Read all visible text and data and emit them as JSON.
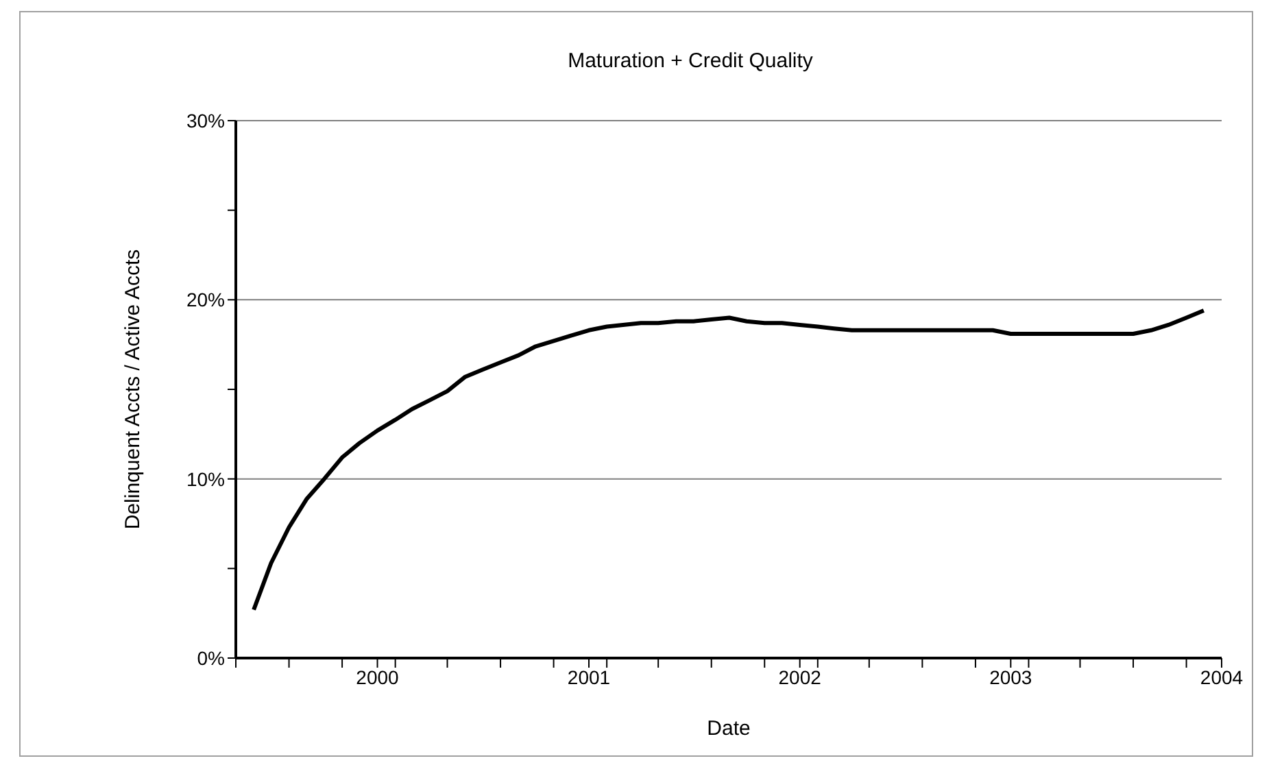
{
  "chart_data": {
    "type": "line",
    "title": "Maturation + Credit Quality",
    "xlabel": "Date",
    "ylabel": "Delinquent Accts / Active Accts",
    "x": [
      "1999-06",
      "1999-07",
      "1999-08",
      "1999-09",
      "1999-10",
      "1999-11",
      "1999-12",
      "2000-01",
      "2000-02",
      "2000-03",
      "2000-04",
      "2000-05",
      "2000-06",
      "2000-07",
      "2000-08",
      "2000-09",
      "2000-10",
      "2000-11",
      "2000-12",
      "2001-01",
      "2001-02",
      "2001-03",
      "2001-04",
      "2001-05",
      "2001-06",
      "2001-07",
      "2001-08",
      "2001-09",
      "2001-10",
      "2001-11",
      "2001-12",
      "2002-01",
      "2002-02",
      "2002-03",
      "2002-04",
      "2002-05",
      "2002-06",
      "2002-07",
      "2002-08",
      "2002-09",
      "2002-10",
      "2002-11",
      "2002-12",
      "2003-01",
      "2003-02",
      "2003-03",
      "2003-04",
      "2003-05",
      "2003-06",
      "2003-07",
      "2003-08",
      "2003-09",
      "2003-10",
      "2003-11",
      "2003-12"
    ],
    "series": [
      {
        "color": "#000000",
        "values": [
          2.7,
          5.3,
          7.3,
          8.9,
          10.0,
          11.2,
          12.0,
          12.7,
          13.3,
          13.9,
          14.4,
          14.9,
          15.7,
          16.1,
          16.5,
          16.9,
          17.4,
          17.7,
          18.0,
          18.3,
          18.5,
          18.6,
          18.7,
          18.7,
          18.8,
          18.8,
          18.9,
          19.0,
          18.8,
          18.7,
          18.7,
          18.6,
          18.5,
          18.4,
          18.3,
          18.3,
          18.3,
          18.3,
          18.3,
          18.3,
          18.3,
          18.3,
          18.3,
          18.1,
          18.1,
          18.1,
          18.1,
          18.1,
          18.1,
          18.1,
          18.1,
          18.3,
          18.6,
          19.0,
          19.4
        ]
      }
    ],
    "xlim": [
      "1999-05",
      "2004-01"
    ],
    "xticks": [
      {
        "value": "1999-05",
        "label": null
      },
      {
        "value": "1999-08",
        "label": null
      },
      {
        "value": "1999-11",
        "label": null
      },
      {
        "value": "2000-01",
        "label": "2000"
      },
      {
        "value": "2000-02",
        "label": null
      },
      {
        "value": "2000-05",
        "label": null
      },
      {
        "value": "2000-08",
        "label": null
      },
      {
        "value": "2000-11",
        "label": null
      },
      {
        "value": "2001-01",
        "label": "2001"
      },
      {
        "value": "2001-02",
        "label": null
      },
      {
        "value": "2001-05",
        "label": null
      },
      {
        "value": "2001-08",
        "label": null
      },
      {
        "value": "2001-11",
        "label": null
      },
      {
        "value": "2002-01",
        "label": "2002"
      },
      {
        "value": "2002-02",
        "label": null
      },
      {
        "value": "2002-05",
        "label": null
      },
      {
        "value": "2002-08",
        "label": null
      },
      {
        "value": "2002-11",
        "label": null
      },
      {
        "value": "2003-01",
        "label": "2003"
      },
      {
        "value": "2003-02",
        "label": null
      },
      {
        "value": "2003-05",
        "label": null
      },
      {
        "value": "2003-08",
        "label": null
      },
      {
        "value": "2003-11",
        "label": null
      },
      {
        "value": "2004-01",
        "label": "2004"
      }
    ],
    "ylim": [
      0,
      30
    ],
    "yticks": [
      {
        "value": 0,
        "label": "0%"
      },
      {
        "value": 5,
        "label": null
      },
      {
        "value": 10,
        "label": "10%"
      },
      {
        "value": 15,
        "label": null
      },
      {
        "value": 20,
        "label": "20%"
      },
      {
        "value": 25,
        "label": null
      },
      {
        "value": 30,
        "label": "30%"
      }
    ],
    "grid": "y",
    "legend": false
  }
}
